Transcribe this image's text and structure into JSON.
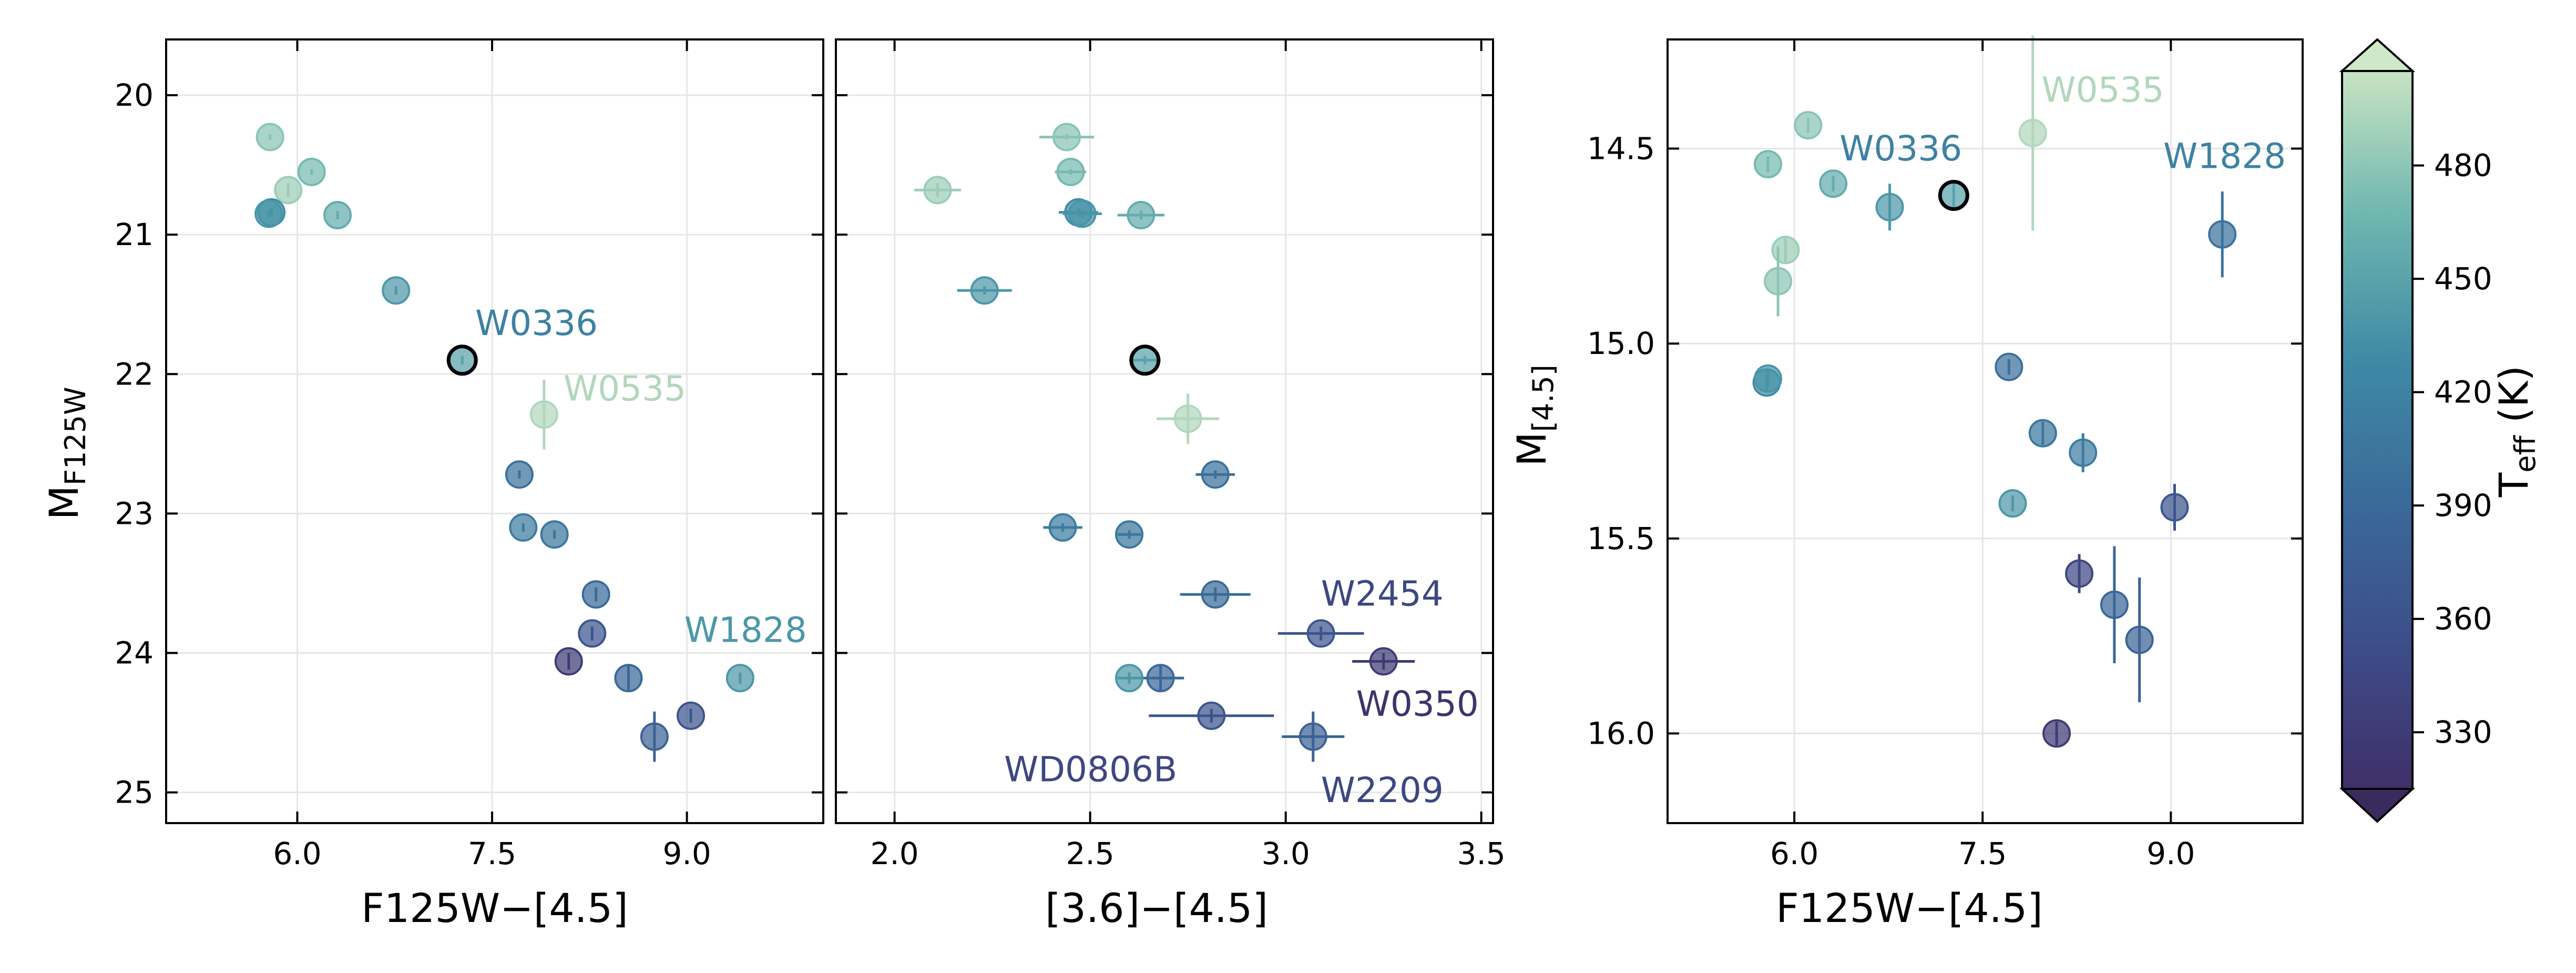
{
  "figure": {
    "panels": [
      {
        "id": "p1",
        "xlabel": "F125W−[4.5]",
        "ylabel_main": "M",
        "ylabel_sub": "F125W"
      },
      {
        "id": "p2",
        "xlabel": "[3.6]−[4.5]"
      },
      {
        "id": "p3",
        "xlabel": "F125W−[4.5]",
        "ylabel_main": "M",
        "ylabel_sub": "[4.5]"
      }
    ],
    "colorbar": {
      "label_main": "T",
      "label_sub": "eff",
      "label_unit": " (K)",
      "ticks": [
        330,
        360,
        390,
        420,
        450,
        480
      ],
      "range": [
        315,
        505
      ]
    }
  },
  "chart_data": [
    {
      "type": "scatter",
      "panel": "p1",
      "xlabel": "F125W−[4.5]",
      "ylabel": "M_F125W",
      "xlim": [
        4.99,
        10.05
      ],
      "ylim": [
        25.22,
        19.6
      ],
      "yinverted": true,
      "xticks": [
        6.0,
        7.5,
        9.0
      ],
      "yticks": [
        20,
        21,
        22,
        23,
        24,
        25
      ],
      "points": [
        {
          "x": 5.79,
          "y": 20.3,
          "yerr": 0.02,
          "teff": 478
        },
        {
          "x": 6.11,
          "y": 20.55,
          "yerr": 0.02,
          "teff": 470
        },
        {
          "x": 5.93,
          "y": 20.68,
          "yerr": 0.05,
          "teff": 486
        },
        {
          "x": 5.8,
          "y": 20.84,
          "yerr": 0.03,
          "teff": 430
        },
        {
          "x": 5.78,
          "y": 20.85,
          "yerr": 0.03,
          "teff": 438
        },
        {
          "x": 6.31,
          "y": 20.86,
          "yerr": 0.03,
          "teff": 458
        },
        {
          "x": 6.76,
          "y": 21.4,
          "yerr": 0.03,
          "teff": 440
        },
        {
          "x": 7.27,
          "y": 21.9,
          "yerr": 0.03,
          "teff": 449,
          "highlight": true
        },
        {
          "x": 7.9,
          "y": 22.29,
          "yerr": 0.25,
          "teff": 495
        },
        {
          "x": 7.71,
          "y": 22.72,
          "yerr": 0.03,
          "teff": 398
        },
        {
          "x": 7.74,
          "y": 23.1,
          "yerr": 0.03,
          "teff": 412
        },
        {
          "x": 7.98,
          "y": 23.15,
          "yerr": 0.03,
          "teff": 406
        },
        {
          "x": 8.3,
          "y": 23.58,
          "yerr": 0.05,
          "teff": 391
        },
        {
          "x": 8.27,
          "y": 23.86,
          "yerr": 0.05,
          "teff": 364
        },
        {
          "x": 8.09,
          "y": 24.06,
          "yerr": 0.06,
          "teff": 330
        },
        {
          "x": 8.55,
          "y": 24.18,
          "yerr": 0.1,
          "teff": 389
        },
        {
          "x": 9.41,
          "y": 24.18,
          "yerr": 0.04,
          "teff": 440
        },
        {
          "x": 8.75,
          "y": 24.6,
          "yerr": 0.18,
          "teff": 380
        },
        {
          "x": 9.03,
          "y": 24.45,
          "yerr": 0.05,
          "teff": 364
        }
      ],
      "annotations": [
        {
          "text": "W0336",
          "x": 7.37,
          "y": 21.72,
          "teff": 418
        },
        {
          "text": "W0535",
          "x": 8.05,
          "y": 22.19,
          "teff": 495
        },
        {
          "text": "W1828",
          "x": 8.98,
          "y": 23.92,
          "teff": 440
        }
      ]
    },
    {
      "type": "scatter",
      "panel": "p2",
      "xlabel": "[3.6]−[4.5]",
      "ylabel": "",
      "xlim": [
        1.85,
        3.53
      ],
      "ylim": [
        25.22,
        19.6
      ],
      "yinverted": true,
      "xticks": [
        2.0,
        2.5,
        3.0,
        3.5
      ],
      "yticks": [
        20,
        21,
        22,
        23,
        24,
        25
      ],
      "points": [
        {
          "x": 2.44,
          "y": 20.3,
          "xerr": 0.07,
          "yerr": 0.02,
          "teff": 478
        },
        {
          "x": 2.45,
          "y": 20.55,
          "xerr": 0.04,
          "yerr": 0.02,
          "teff": 470
        },
        {
          "x": 2.11,
          "y": 20.68,
          "xerr": 0.06,
          "yerr": 0.05,
          "teff": 486
        },
        {
          "x": 2.47,
          "y": 20.84,
          "xerr": 0.05,
          "yerr": 0.03,
          "teff": 430
        },
        {
          "x": 2.48,
          "y": 20.85,
          "xerr": 0.05,
          "yerr": 0.03,
          "teff": 438
        },
        {
          "x": 2.63,
          "y": 20.86,
          "xerr": 0.06,
          "yerr": 0.03,
          "teff": 458
        },
        {
          "x": 2.23,
          "y": 21.4,
          "xerr": 0.07,
          "yerr": 0.03,
          "teff": 440
        },
        {
          "x": 2.64,
          "y": 21.9,
          "xerr": 0.04,
          "yerr": 0.03,
          "teff": 449,
          "highlight": true
        },
        {
          "x": 2.75,
          "y": 22.32,
          "xerr": 0.08,
          "yerr": 0.18,
          "teff": 495
        },
        {
          "x": 2.82,
          "y": 22.72,
          "xerr": 0.05,
          "yerr": 0.03,
          "teff": 398
        },
        {
          "x": 2.43,
          "y": 23.1,
          "xerr": 0.05,
          "yerr": 0.03,
          "teff": 412
        },
        {
          "x": 2.6,
          "y": 23.15,
          "xerr": 0.03,
          "yerr": 0.03,
          "teff": 406
        },
        {
          "x": 2.82,
          "y": 23.58,
          "xerr": 0.09,
          "yerr": 0.05,
          "teff": 391
        },
        {
          "x": 3.09,
          "y": 23.86,
          "xerr": 0.11,
          "yerr": 0.05,
          "teff": 364
        },
        {
          "x": 3.25,
          "y": 24.06,
          "xerr": 0.08,
          "yerr": 0.06,
          "teff": 330
        },
        {
          "x": 2.68,
          "y": 24.18,
          "xerr": 0.06,
          "yerr": 0.1,
          "teff": 389
        },
        {
          "x": 2.6,
          "y": 24.18,
          "xerr": 0.03,
          "yerr": 0.04,
          "teff": 440
        },
        {
          "x": 2.81,
          "y": 24.45,
          "xerr": 0.16,
          "yerr": 0.05,
          "teff": 364
        },
        {
          "x": 3.07,
          "y": 24.6,
          "xerr": 0.08,
          "yerr": 0.18,
          "teff": 380
        }
      ],
      "annotations": [
        {
          "text": "W2454",
          "x": 3.09,
          "y": 23.66,
          "teff": 345
        },
        {
          "text": "W0350",
          "x": 3.18,
          "y": 24.45,
          "teff": 320
        },
        {
          "text": "WD0806B",
          "x": 2.28,
          "y": 24.92,
          "teff": 345
        },
        {
          "text": "W2209",
          "x": 3.09,
          "y": 25.07,
          "teff": 345
        }
      ]
    },
    {
      "type": "scatter",
      "panel": "p3",
      "xlabel": "F125W−[4.5]",
      "ylabel": "M_[4.5]",
      "xlim": [
        4.99,
        10.05
      ],
      "ylim": [
        16.23,
        14.22
      ],
      "yinverted": true,
      "xticks": [
        6.0,
        7.5,
        9.0
      ],
      "yticks": [
        14.5,
        15.0,
        15.5,
        16.0
      ],
      "points": [
        {
          "x": 6.11,
          "y": 14.44,
          "yerr": 0.02,
          "teff": 478
        },
        {
          "x": 5.79,
          "y": 14.54,
          "yerr": 0.02,
          "teff": 470
        },
        {
          "x": 6.31,
          "y": 14.59,
          "yerr": 0.02,
          "teff": 458
        },
        {
          "x": 6.76,
          "y": 14.65,
          "yerr": 0.06,
          "teff": 440
        },
        {
          "x": 7.27,
          "y": 14.62,
          "yerr": 0.03,
          "teff": 449,
          "highlight": true
        },
        {
          "x": 7.9,
          "y": 14.46,
          "yerr": 0.25,
          "teff": 495
        },
        {
          "x": 5.93,
          "y": 14.76,
          "yerr": 0.03,
          "teff": 486
        },
        {
          "x": 5.87,
          "y": 14.84,
          "yerr": 0.09,
          "teff": 480
        },
        {
          "x": 9.41,
          "y": 14.72,
          "yerr": 0.11,
          "teff": 400
        },
        {
          "x": 5.78,
          "y": 15.1,
          "yerr": 0.02,
          "teff": 430
        },
        {
          "x": 5.79,
          "y": 15.09,
          "yerr": 0.02,
          "teff": 438
        },
        {
          "x": 7.71,
          "y": 15.06,
          "yerr": 0.02,
          "teff": 398
        },
        {
          "x": 7.98,
          "y": 15.23,
          "yerr": 0.03,
          "teff": 406
        },
        {
          "x": 8.3,
          "y": 15.28,
          "yerr": 0.05,
          "teff": 412
        },
        {
          "x": 7.74,
          "y": 15.41,
          "yerr": 0.02,
          "teff": 440
        },
        {
          "x": 9.03,
          "y": 15.42,
          "yerr": 0.06,
          "teff": 364
        },
        {
          "x": 8.27,
          "y": 15.59,
          "yerr": 0.05,
          "teff": 345
        },
        {
          "x": 8.55,
          "y": 15.67,
          "yerr": 0.15,
          "teff": 389
        },
        {
          "x": 8.75,
          "y": 15.76,
          "yerr": 0.16,
          "teff": 380
        },
        {
          "x": 8.09,
          "y": 16.0,
          "yerr": 0.03,
          "teff": 330
        }
      ],
      "annotations": [
        {
          "text": "W0535",
          "x": 7.97,
          "y": 14.38,
          "teff": 495
        },
        {
          "text": "W0336",
          "x": 6.36,
          "y": 14.53,
          "teff": 418
        },
        {
          "text": "W1828",
          "x": 8.94,
          "y": 14.55,
          "teff": 420
        }
      ]
    }
  ]
}
